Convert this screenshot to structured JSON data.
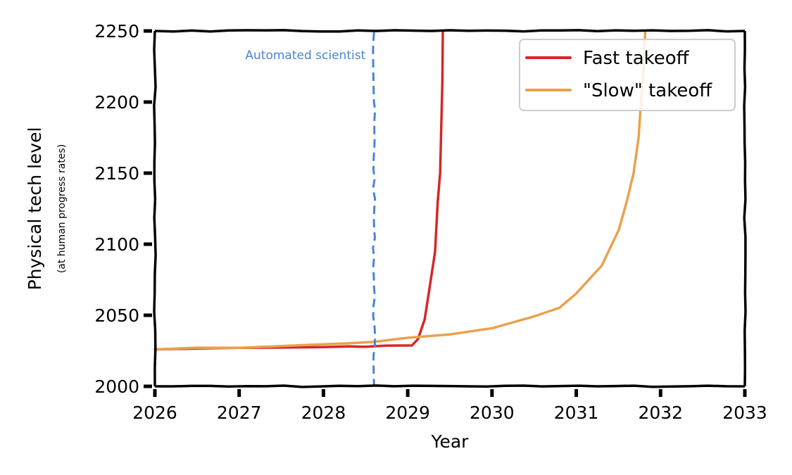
{
  "chart_data": {
    "type": "line",
    "xlabel": "Year",
    "ylabel": "Physical tech level",
    "ylabel_sub": "(at human progress rates)",
    "xlim": [
      2026,
      2033
    ],
    "ylim": [
      2000,
      2250
    ],
    "xticks": [
      2026,
      2027,
      2028,
      2029,
      2030,
      2031,
      2032,
      2033
    ],
    "yticks": [
      2000,
      2050,
      2100,
      2150,
      2200,
      2250
    ],
    "x_tick_labels": [
      "2026",
      "2027",
      "2028",
      "2029",
      "2030",
      "2031",
      "2032",
      "2033"
    ],
    "y_tick_labels": [
      "2000",
      "2050",
      "2100",
      "2150",
      "2200",
      "2250"
    ],
    "legend_position": "top-right",
    "series": [
      {
        "name": "Fast takeoff",
        "color": "#d62728",
        "points": [
          [
            2026.0,
            2026
          ],
          [
            2026.5,
            2026.6
          ],
          [
            2027.0,
            2027
          ],
          [
            2027.5,
            2027.3
          ],
          [
            2028.0,
            2027.8
          ],
          [
            2028.3,
            2028
          ],
          [
            2028.5,
            2028
          ],
          [
            2028.75,
            2028.4
          ],
          [
            2029.05,
            2028.6
          ],
          [
            2029.12,
            2033
          ],
          [
            2029.2,
            2047
          ],
          [
            2029.27,
            2072
          ],
          [
            2029.32,
            2095
          ],
          [
            2029.36,
            2130
          ],
          [
            2029.38,
            2150
          ],
          [
            2029.4,
            2185
          ],
          [
            2029.41,
            2215
          ],
          [
            2029.42,
            2250
          ]
        ]
      },
      {
        "name": "\"Slow\" takeoff",
        "color": "#e8a14e",
        "points": [
          [
            2026.0,
            2026
          ],
          [
            2026.5,
            2027
          ],
          [
            2027.0,
            2027
          ],
          [
            2027.5,
            2028.5
          ],
          [
            2028.0,
            2029.5
          ],
          [
            2028.3,
            2030.5
          ],
          [
            2028.6,
            2031.5
          ],
          [
            2029.0,
            2034
          ],
          [
            2029.5,
            2036.5
          ],
          [
            2030.0,
            2041
          ],
          [
            2030.5,
            2049
          ],
          [
            2030.8,
            2055
          ],
          [
            2031.0,
            2065
          ],
          [
            2031.3,
            2085
          ],
          [
            2031.5,
            2110
          ],
          [
            2031.6,
            2130
          ],
          [
            2031.68,
            2150
          ],
          [
            2031.74,
            2175
          ],
          [
            2031.77,
            2200
          ],
          [
            2031.8,
            2225
          ],
          [
            2031.82,
            2250
          ]
        ]
      }
    ],
    "annotations": [
      {
        "type": "vline",
        "x": 2028.6,
        "label": "Automated scientist",
        "color": "#4a84d6",
        "style": "dashed"
      }
    ]
  }
}
